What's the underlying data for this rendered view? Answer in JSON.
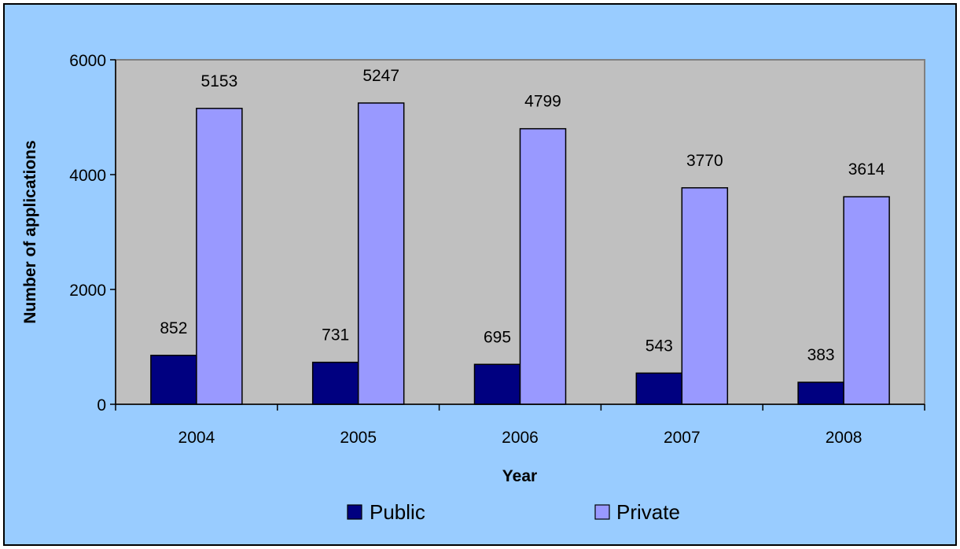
{
  "chart_data": {
    "type": "bar",
    "categories": [
      "2004",
      "2005",
      "2006",
      "2007",
      "2008"
    ],
    "series": [
      {
        "name": "Public",
        "values": [
          852,
          731,
          695,
          543,
          383
        ],
        "color": "#000080"
      },
      {
        "name": "Private",
        "values": [
          5153,
          5247,
          4799,
          3770,
          3614
        ],
        "color": "#9999ff"
      }
    ],
    "title": "",
    "xlabel": "Year",
    "ylabel": "Number of applications",
    "ylim": [
      0,
      6000
    ],
    "yticks": [
      "0",
      "2000",
      "4000",
      "6000"
    ],
    "grid": false,
    "legend": "bottom",
    "data_labels": true,
    "plot_background": "#c0c0c0",
    "frame_background": "#99ccff"
  }
}
